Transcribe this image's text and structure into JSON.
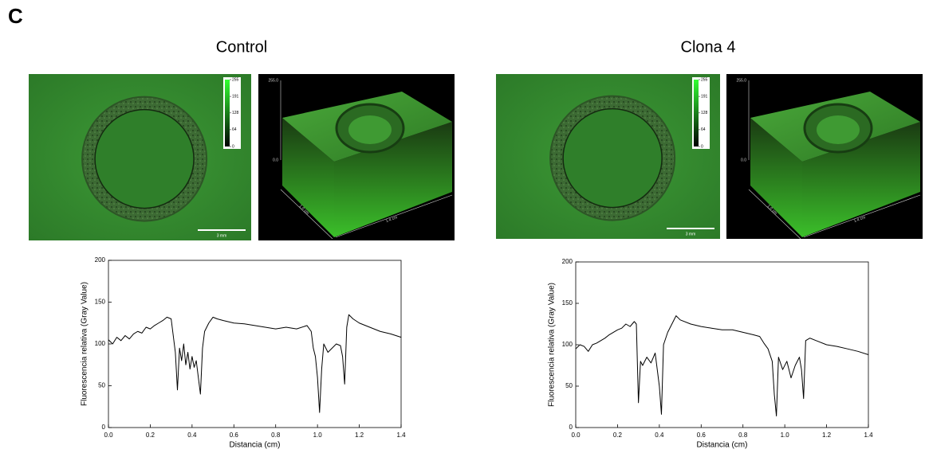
{
  "panel_label": "C",
  "panels": [
    {
      "colorbar_ticks": [
        255,
        191,
        128,
        64,
        0
      ],
      "scale_bar": "3 mm",
      "surface_z_top": "255.0",
      "surface_z_bottom": "0.0",
      "surface_y_label": "1.0 cm",
      "surface_x_label": "1.4 cm"
    },
    {
      "colorbar_ticks": [
        255,
        191,
        128,
        64,
        0
      ],
      "scale_bar": "3 mm",
      "surface_z_top": "255.0",
      "surface_z_bottom": "0.0",
      "surface_y_label": "1.0 cm",
      "surface_x_label": "1.4 cm"
    }
  ],
  "chart_data": [
    {
      "type": "line",
      "title": "Control",
      "xlabel": "Distancia (cm)",
      "ylabel": "Fluorescencia relativa (Gray Value)",
      "color": "#000000",
      "x": [
        0.0,
        0.02,
        0.04,
        0.06,
        0.08,
        0.1,
        0.12,
        0.14,
        0.16,
        0.18,
        0.2,
        0.22,
        0.24,
        0.26,
        0.28,
        0.3,
        0.31,
        0.32,
        0.33,
        0.34,
        0.35,
        0.36,
        0.37,
        0.38,
        0.39,
        0.4,
        0.41,
        0.42,
        0.43,
        0.44,
        0.45,
        0.46,
        0.48,
        0.5,
        0.52,
        0.55,
        0.6,
        0.65,
        0.7,
        0.75,
        0.8,
        0.85,
        0.9,
        0.95,
        0.97,
        0.98,
        0.99,
        1.0,
        1.01,
        1.02,
        1.03,
        1.05,
        1.07,
        1.09,
        1.11,
        1.12,
        1.13,
        1.14,
        1.15,
        1.17,
        1.2,
        1.25,
        1.3,
        1.35,
        1.4
      ],
      "values": [
        105,
        100,
        108,
        104,
        110,
        106,
        112,
        115,
        113,
        120,
        118,
        122,
        125,
        128,
        132,
        130,
        110,
        90,
        45,
        95,
        80,
        100,
        75,
        90,
        70,
        85,
        72,
        80,
        60,
        40,
        95,
        115,
        125,
        132,
        130,
        128,
        125,
        124,
        122,
        120,
        118,
        120,
        118,
        122,
        115,
        95,
        85,
        60,
        18,
        70,
        100,
        90,
        95,
        100,
        98,
        85,
        52,
        120,
        135,
        130,
        125,
        120,
        115,
        112,
        108
      ],
      "xlim": [
        0,
        1.4
      ],
      "ylim": [
        0,
        200
      ],
      "xticks": [
        {
          "value": 0,
          "label": "0.0"
        },
        {
          "value": 0.2,
          "label": "0.2"
        },
        {
          "value": 0.4,
          "label": "0.4"
        },
        {
          "value": 0.6,
          "label": "0.6"
        },
        {
          "value": 0.8,
          "label": "0.8"
        },
        {
          "value": 1,
          "label": "1.0"
        },
        {
          "value": 1.2,
          "label": "1.2"
        },
        {
          "value": 1.4,
          "label": "1.4"
        }
      ],
      "yticks": [
        0,
        50,
        100,
        150,
        200
      ]
    },
    {
      "type": "line",
      "title": "Clona 4",
      "xlabel": "Distancia (cm)",
      "ylabel": "Fluorescencia relativa (Gray Value)",
      "color": "#000000",
      "x": [
        0.0,
        0.02,
        0.04,
        0.06,
        0.08,
        0.1,
        0.12,
        0.14,
        0.16,
        0.18,
        0.2,
        0.22,
        0.24,
        0.26,
        0.28,
        0.29,
        0.3,
        0.31,
        0.32,
        0.34,
        0.36,
        0.38,
        0.39,
        0.4,
        0.41,
        0.42,
        0.44,
        0.46,
        0.48,
        0.5,
        0.55,
        0.6,
        0.65,
        0.7,
        0.75,
        0.8,
        0.85,
        0.88,
        0.9,
        0.92,
        0.94,
        0.95,
        0.96,
        0.97,
        0.99,
        1.01,
        1.03,
        1.05,
        1.07,
        1.08,
        1.09,
        1.1,
        1.12,
        1.15,
        1.2,
        1.25,
        1.3,
        1.35,
        1.4
      ],
      "values": [
        95,
        100,
        98,
        92,
        100,
        102,
        105,
        108,
        112,
        115,
        118,
        120,
        125,
        122,
        128,
        125,
        30,
        80,
        75,
        85,
        78,
        90,
        70,
        50,
        16,
        100,
        115,
        125,
        135,
        130,
        125,
        122,
        120,
        118,
        118,
        115,
        112,
        110,
        102,
        95,
        80,
        40,
        14,
        85,
        70,
        80,
        60,
        75,
        85,
        70,
        35,
        105,
        108,
        105,
        100,
        98,
        95,
        92,
        88
      ],
      "xlim": [
        0,
        1.4
      ],
      "ylim": [
        0,
        200
      ],
      "xticks": [
        {
          "value": 0,
          "label": "0.0"
        },
        {
          "value": 0.2,
          "label": "0.2"
        },
        {
          "value": 0.4,
          "label": "0.4"
        },
        {
          "value": 0.6,
          "label": "0.6"
        },
        {
          "value": 0.8,
          "label": "0.8"
        },
        {
          "value": 1,
          "label": "1.0"
        },
        {
          "value": 1.2,
          "label": "1.2"
        },
        {
          "value": 1.4,
          "label": "1.4"
        }
      ],
      "yticks": [
        0,
        50,
        100,
        150,
        200
      ]
    }
  ]
}
